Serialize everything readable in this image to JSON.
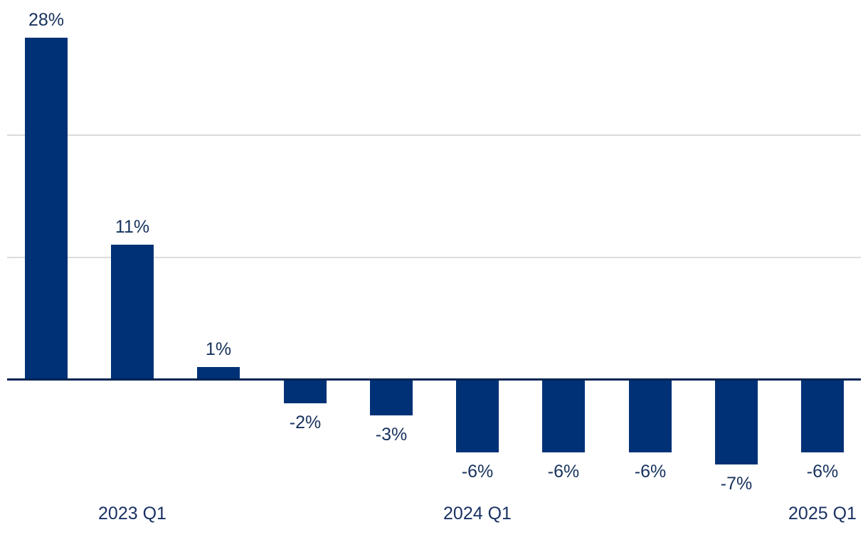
{
  "chart_data": {
    "type": "bar",
    "title": "",
    "xlabel": "",
    "ylabel": "",
    "values": [
      28,
      11,
      1,
      -2,
      -3,
      -6,
      -6,
      -6,
      -7,
      -6
    ],
    "bar_labels": [
      "28%",
      "11%",
      "1%",
      "-2%",
      "-3%",
      "-6%",
      "-6%",
      "-6%",
      "-7%",
      "-6%"
    ],
    "x_tick_labels": [
      {
        "label": "2023 Q1",
        "bar_index": 1
      },
      {
        "label": "2024 Q1",
        "bar_index": 5
      },
      {
        "label": "2025 Q1",
        "bar_index": 9
      }
    ],
    "gridline_values": [
      10,
      20
    ],
    "baseline_value": 0,
    "ylim": [
      -13,
      31
    ],
    "grid": true,
    "legend_position": "none",
    "colors": {
      "bar": "#003176",
      "data_label": "#16325c",
      "tick_label": "#1a3263",
      "axis_line": "#002452",
      "gridline": "#dcdcdc",
      "background": "#ffffff"
    }
  }
}
